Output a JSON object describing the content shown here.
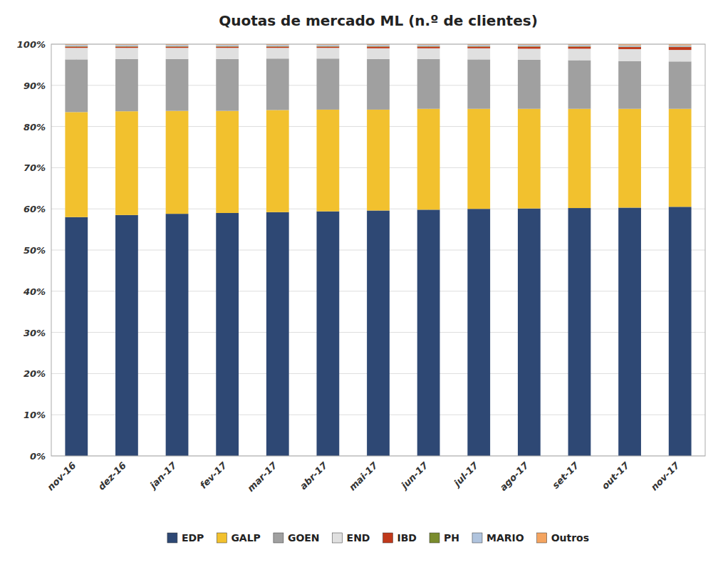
{
  "chart_data": {
    "type": "bar",
    "stacked": true,
    "title": "Quotas de mercado ML (n.º de clientes)",
    "categories": [
      "nov-16",
      "dez-16",
      "jan-17",
      "fev-17",
      "mar-17",
      "abr-17",
      "mai-17",
      "jun-17",
      "jul-17",
      "ago-17",
      "set-17",
      "out-17",
      "nov-17"
    ],
    "series": [
      {
        "name": "EDP",
        "color": "#2E4874",
        "values": [
          58.0,
          58.5,
          58.8,
          59.0,
          59.2,
          59.4,
          59.6,
          59.8,
          60.0,
          60.1,
          60.2,
          60.3,
          60.5
        ]
      },
      {
        "name": "GALP",
        "color": "#F2C12E",
        "values": [
          25.5,
          25.2,
          25.0,
          24.8,
          24.8,
          24.7,
          24.5,
          24.5,
          24.3,
          24.2,
          24.1,
          24.0,
          23.8
        ]
      },
      {
        "name": "GOEN",
        "color": "#A0A0A0",
        "values": [
          12.8,
          12.7,
          12.6,
          12.6,
          12.5,
          12.4,
          12.3,
          12.1,
          12.0,
          11.9,
          11.8,
          11.6,
          11.5
        ]
      },
      {
        "name": "END",
        "color": "#E0E0E0",
        "values": [
          2.8,
          2.7,
          2.7,
          2.7,
          2.6,
          2.6,
          2.6,
          2.6,
          2.7,
          2.7,
          2.8,
          2.9,
          2.8
        ]
      },
      {
        "name": "IBD",
        "color": "#C0391B",
        "values": [
          0.3,
          0.3,
          0.3,
          0.3,
          0.3,
          0.3,
          0.4,
          0.4,
          0.4,
          0.5,
          0.5,
          0.5,
          0.7
        ]
      },
      {
        "name": "PH",
        "color": "#7A8C2E",
        "values": [
          0.1,
          0.1,
          0.1,
          0.1,
          0.1,
          0.1,
          0.1,
          0.1,
          0.1,
          0.1,
          0.1,
          0.1,
          0.1
        ]
      },
      {
        "name": "MARIO",
        "color": "#B0C4DE",
        "values": [
          0.3,
          0.3,
          0.3,
          0.3,
          0.3,
          0.3,
          0.3,
          0.3,
          0.3,
          0.3,
          0.3,
          0.3,
          0.3
        ]
      },
      {
        "name": "Outros",
        "color": "#F4A460",
        "values": [
          0.2,
          0.2,
          0.2,
          0.2,
          0.2,
          0.2,
          0.2,
          0.2,
          0.2,
          0.2,
          0.2,
          0.3,
          0.3
        ]
      }
    ],
    "ylim": [
      0,
      100
    ],
    "yticks": [
      {
        "value": 0,
        "label": "0%"
      },
      {
        "value": 10,
        "label": "10%"
      },
      {
        "value": 20,
        "label": "20%"
      },
      {
        "value": 30,
        "label": "30%"
      },
      {
        "value": 40,
        "label": "40%"
      },
      {
        "value": 50,
        "label": "50%"
      },
      {
        "value": 60,
        "label": "60%"
      },
      {
        "value": 70,
        "label": "70%"
      },
      {
        "value": 80,
        "label": "80%"
      },
      {
        "value": 90,
        "label": "90%"
      },
      {
        "value": 100,
        "label": "100%"
      }
    ],
    "grid": true,
    "legend": "bottom"
  }
}
